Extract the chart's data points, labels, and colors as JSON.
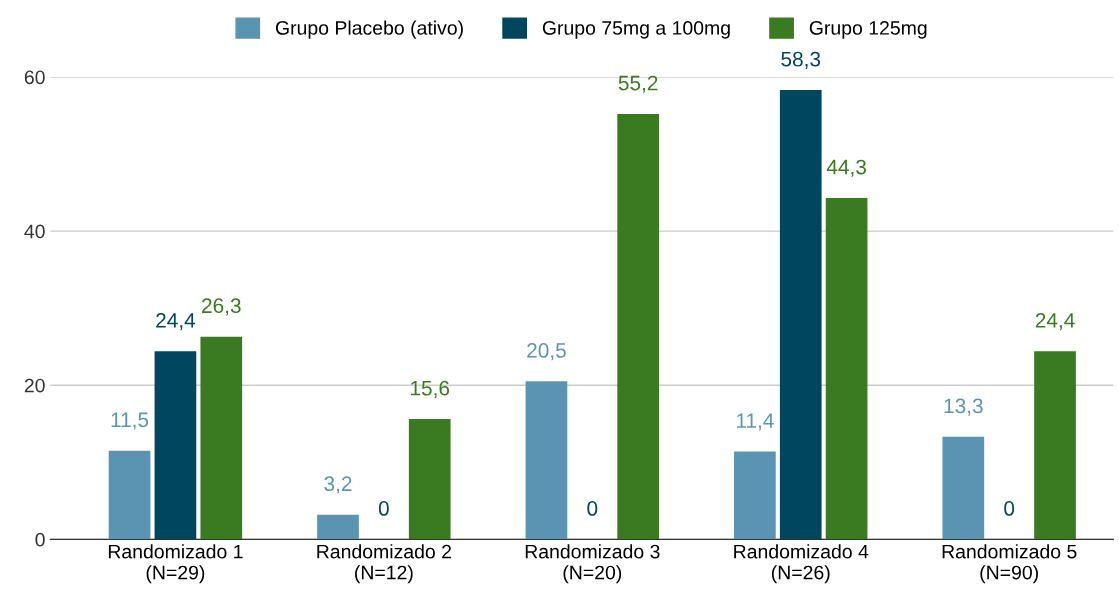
{
  "chart_data": {
    "type": "bar",
    "categories": [
      "Randomizado 1\n(N=29)",
      "Randomizado 2\n(N=12)",
      "Randomizado 3\n(N=20)",
      "Randomizado 4\n(N=26)",
      "Randomizado 5\n(N=90)"
    ],
    "series": [
      {
        "name": "Grupo Placebo (ativo)",
        "color": "#5b94b3",
        "values": [
          11.5,
          3.2,
          20.5,
          11.4,
          13.3
        ],
        "value_labels": [
          "11,5",
          "3,2",
          "20,5",
          "11,4",
          "13,3"
        ]
      },
      {
        "name": "Grupo 75mg a 100mg",
        "color": "#00465f",
        "values": [
          24.4,
          0,
          0,
          58.3,
          0
        ],
        "value_labels": [
          "24,4",
          "0",
          "0",
          "58,3",
          "0"
        ]
      },
      {
        "name": "Grupo 125mg",
        "color": "#3a7a21",
        "values": [
          26.3,
          15.6,
          55.2,
          44.3,
          24.4
        ],
        "value_labels": [
          "26,3",
          "15,6",
          "55,2",
          "44,3",
          "24,4"
        ]
      }
    ],
    "ylim": [
      0,
      60
    ],
    "yticks": [
      0,
      20,
      40,
      60
    ],
    "grid": "y",
    "legend": "top"
  }
}
